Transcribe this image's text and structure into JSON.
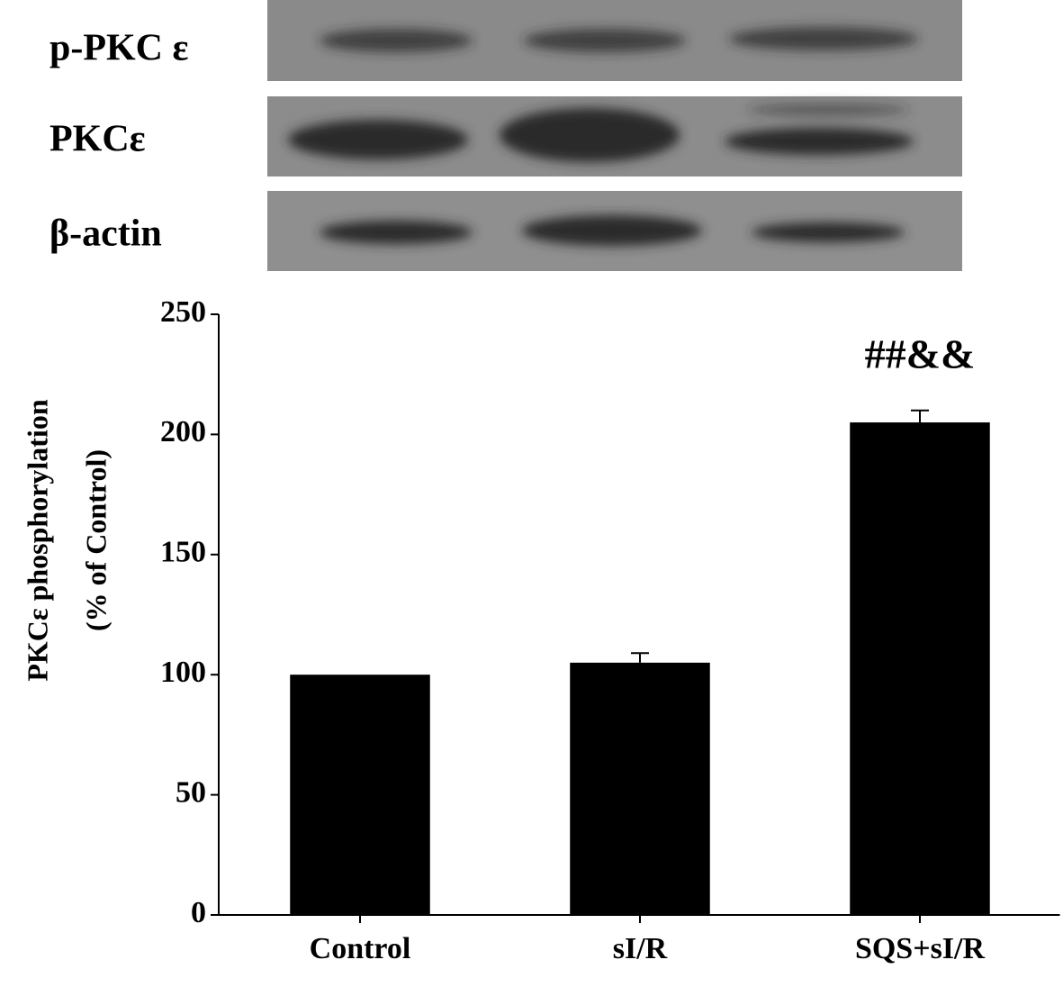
{
  "blot": {
    "rows": [
      "p-PKC ε",
      "PKCε",
      "β-actin"
    ]
  },
  "chart_data": {
    "type": "bar",
    "ylabel": [
      "PKCε phosphorylation",
      "(% of Control)"
    ],
    "categories": [
      "Control",
      "sI/R",
      "SQS+sI/R"
    ],
    "values": [
      100,
      105,
      205
    ],
    "errors": [
      null,
      4,
      5
    ],
    "color": "#000000",
    "annotations": [
      {
        "category": 2,
        "text": "##&&"
      }
    ],
    "ylim": [
      0,
      250
    ],
    "yticks": [
      0,
      50,
      100,
      150,
      200,
      250
    ],
    "grid": false
  }
}
